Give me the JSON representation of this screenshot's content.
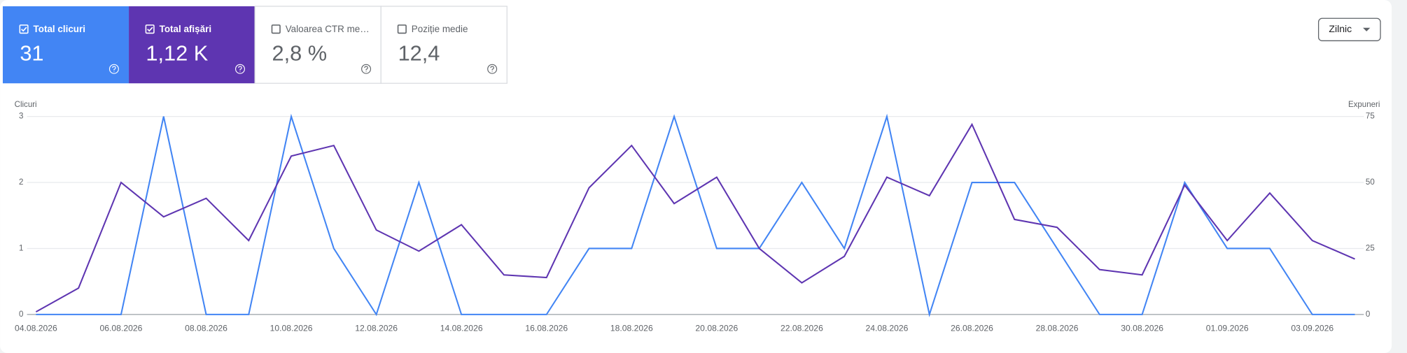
{
  "cards": [
    {
      "label": "Total clicuri",
      "value": "31",
      "checked": true,
      "color": "#4285f4"
    },
    {
      "label": "Total afișări",
      "value": "1,12 K",
      "checked": true,
      "color": "#5e35b1"
    },
    {
      "label": "Valoarea CTR me…",
      "value": "2,8 %",
      "checked": false,
      "color": "#ffffff"
    },
    {
      "label": "Poziție medie",
      "value": "12,4",
      "checked": false,
      "color": "#ffffff"
    }
  ],
  "dropdown": "Zilnic",
  "chart_data": {
    "type": "line",
    "y_label": "Clicuri",
    "y2_label": "Expuneri",
    "categories": [
      "04.08.2026",
      null,
      "06.08.2026",
      null,
      "08.08.2026",
      null,
      "10.08.2026",
      null,
      "12.08.2026",
      null,
      "14.08.2026",
      null,
      "16.08.2026",
      null,
      "18.08.2026",
      null,
      "20.08.2026",
      null,
      "22.08.2026",
      null,
      "24.08.2026",
      null,
      "26.08.2026",
      null,
      "28.08.2026",
      null,
      "30.08.2026",
      null,
      "01.09.2026",
      null,
      "03.09.2026",
      null
    ],
    "series": [
      {
        "name": "Total clicuri",
        "color": "#4285f4",
        "values": [
          0,
          0,
          0,
          3,
          0,
          0,
          3,
          1,
          0,
          2,
          0,
          0,
          0,
          1,
          1,
          3,
          1,
          1,
          2,
          1,
          3,
          0,
          2,
          2,
          1,
          0,
          0,
          2,
          1,
          1,
          0,
          0
        ]
      },
      {
        "name": "Total afișări",
        "color": "#5e35b1",
        "axis": "y2",
        "values": [
          1,
          10,
          50,
          37,
          44,
          28,
          60,
          64,
          32,
          24,
          34,
          15,
          14,
          48,
          64,
          42,
          52,
          25,
          12,
          22,
          52,
          45,
          72,
          36,
          33,
          17,
          15,
          49,
          28,
          46,
          28,
          21
        ]
      }
    ],
    "ylim": [
      0,
      3
    ],
    "yticks": [
      0,
      1,
      2,
      3
    ],
    "y2lim": [
      0,
      75
    ],
    "y2ticks": [
      0,
      25,
      50,
      75
    ],
    "grid": true
  }
}
